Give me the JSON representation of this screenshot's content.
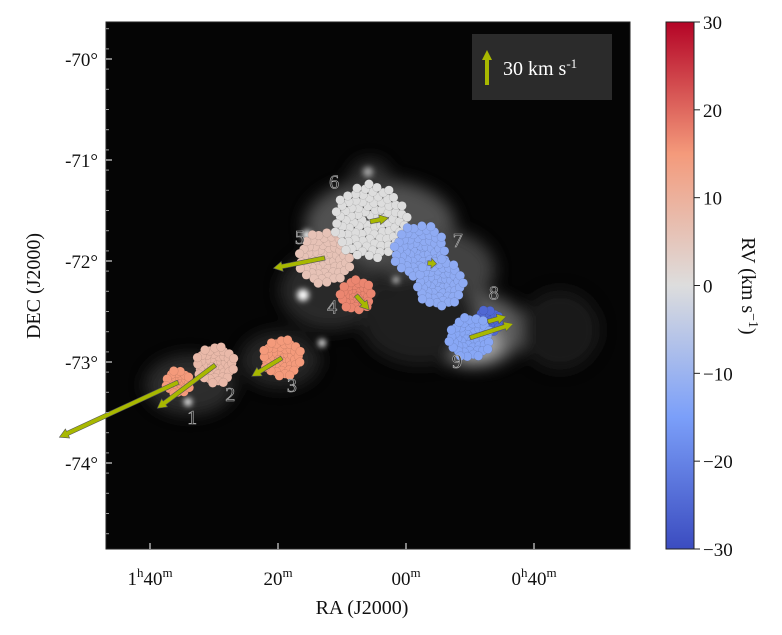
{
  "chart_data": {
    "type": "scatter",
    "title": "",
    "xlabel": "RA (J2000)",
    "ylabel": "DEC (J2000)",
    "x_unit": "minutes of RA (0h–1h)",
    "xlim_minutes": [
      107,
      25
    ],
    "ylim_deg": [
      -69.4,
      -74.9
    ],
    "x_ticks": [
      {
        "value": 100,
        "h": "1",
        "m": "40"
      },
      {
        "value": 80,
        "h": "",
        "m": "20"
      },
      {
        "value": 60,
        "h": "",
        "m": "00"
      },
      {
        "value": 40,
        "h": "0",
        "m": "40"
      }
    ],
    "y_ticks": [
      {
        "value": -70,
        "label": "-70°"
      },
      {
        "value": -71,
        "label": "-71°"
      },
      {
        "value": -72,
        "label": "-72°"
      },
      {
        "value": -73,
        "label": "-73°"
      },
      {
        "value": -74,
        "label": "-74°"
      }
    ],
    "colorbar": {
      "label": "RV (km s",
      "label_sup": "−1",
      "label_end": ")",
      "range": [
        -30,
        30
      ],
      "ticks": [
        "30",
        "20",
        "10",
        "0",
        "−10",
        "−20",
        "−30"
      ],
      "colors": [
        "#3b4cc0",
        "#dddddd",
        "#b40426"
      ]
    },
    "legend": {
      "label": "30 km s",
      "sup": "-1",
      "arrow_kms": 30,
      "position": "top-right"
    },
    "arrow_color": "#a8b800",
    "clusters": [
      {
        "id": "1",
        "ra": 95.6,
        "dec": -73.2,
        "rv": 15,
        "pm": [
          -162,
          -75
        ]
      },
      {
        "id": "2",
        "ra": 89.8,
        "dec": -73.03,
        "rv": 8,
        "pm": [
          -79,
          -59
        ]
      },
      {
        "id": "3",
        "ra": 79.4,
        "dec": -72.96,
        "rv": 15,
        "pm": [
          -41,
          -25
        ]
      },
      {
        "id": "4",
        "ra": 67.8,
        "dec": -72.34,
        "rv": 17,
        "pm": [
          18,
          -20
        ]
      },
      {
        "id": "5",
        "ra": 72.7,
        "dec": -71.97,
        "rv": 6,
        "pm": [
          -70,
          -14
        ]
      },
      {
        "id": "6",
        "ra": 65.6,
        "dec": -71.61,
        "rv": 0,
        "pm": [
          25,
          5
        ]
      },
      {
        "id": "7",
        "ra": 56.6,
        "dec": -72.02,
        "rv": -12,
        "pm": [
          12,
          -1
        ]
      },
      {
        "id": "8",
        "ra": 47.2,
        "dec": -72.6,
        "rv": -25,
        "pm": [
          25,
          7
        ]
      },
      {
        "id": "9",
        "ra": 50.0,
        "dec": -72.76,
        "rv": -13,
        "pm": [
          59,
          19
        ]
      }
    ]
  }
}
